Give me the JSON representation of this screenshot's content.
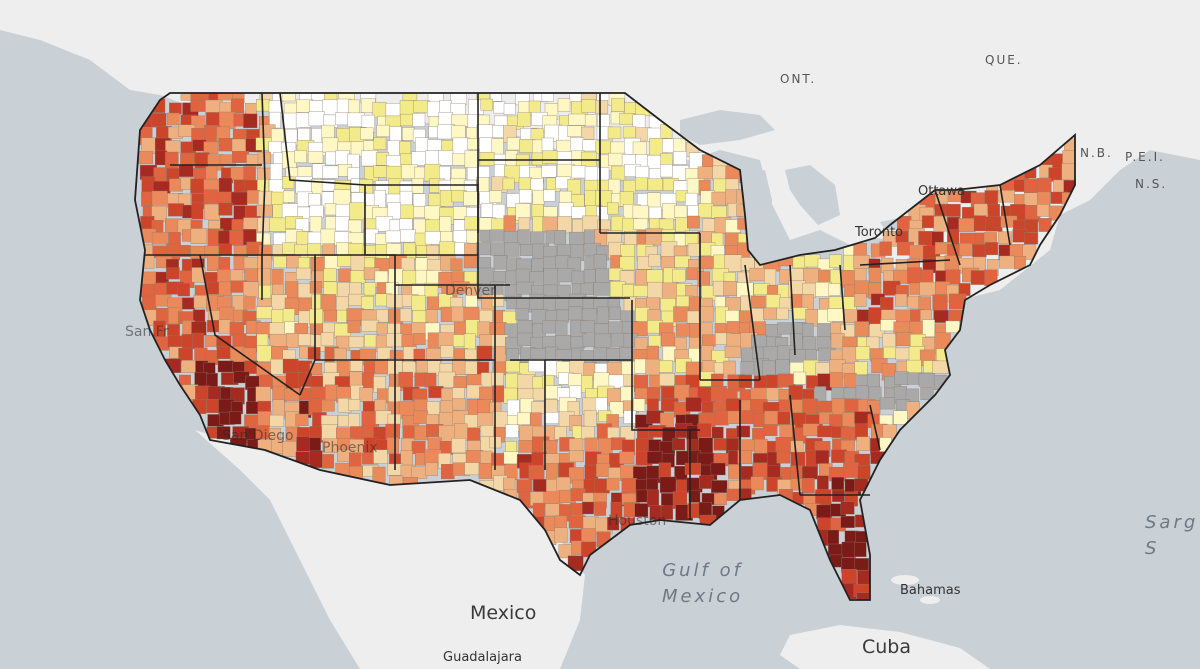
{
  "colors": {
    "water": "#c9d0d6",
    "land": "#eeeeee",
    "no_data": "#a9a9a9",
    "scale": [
      "#ffffff",
      "#fff7c4",
      "#f3ea8a",
      "#f4d7a6",
      "#eeb07e",
      "#ea8a5a",
      "#df643f",
      "#cc452b",
      "#a52a1f",
      "#7a1b17"
    ],
    "state_border": "#222222",
    "county_border": "#8a7a6e"
  },
  "countries": {
    "mexico": "Mexico",
    "cuba": "Cuba"
  },
  "provinces": {
    "ont": "ONT.",
    "que": "QUE.",
    "nb": "N.B.",
    "pei": "P.E.I.",
    "ns": "N.S."
  },
  "cities": {
    "ottawa": "Ottawa",
    "toronto": "Toronto",
    "san_francisco": "San Fr",
    "san_diego": "San Diego",
    "phoenix": "Phoenix",
    "houston": "Houston",
    "denver": "Denver",
    "guadalajara": "Guadalajara",
    "bahamas": "Bahamas"
  },
  "water_bodies": {
    "gulf_line1": "Gulf of",
    "gulf_line2": "Mexico",
    "sargasso_line1": "Sarg",
    "sargasso_line2": "S"
  }
}
